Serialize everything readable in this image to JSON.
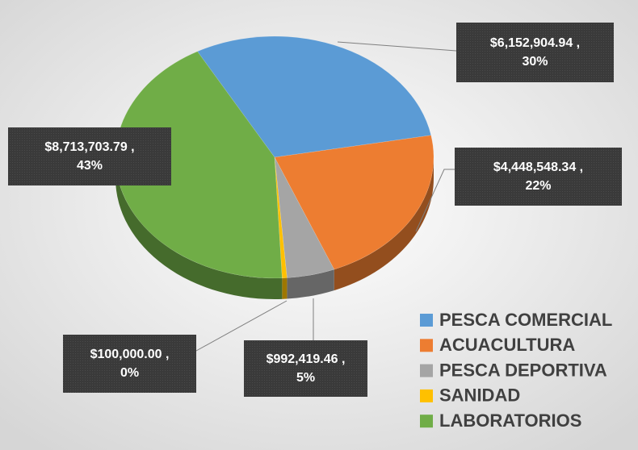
{
  "chart_data": {
    "type": "pie",
    "categories": [
      "PESCA COMERCIAL",
      "ACUACULTURA",
      "PESCA DEPORTIVA",
      "SANIDAD",
      "LABORATORIOS"
    ],
    "values": [
      6152904.94,
      4448548.34,
      992419.46,
      100000.0,
      8713703.79
    ],
    "value_labels": [
      "$6,152,904.94 ,",
      "$4,448,548.34 ,",
      "$992,419.46 ,",
      "$100,000.00 ,",
      "$8,713,703.79 ,"
    ],
    "percent_labels": [
      "30%",
      "22%",
      "5%",
      "0%",
      "43%"
    ],
    "colors": [
      "#5b9bd5",
      "#ed7d31",
      "#a5a5a5",
      "#ffc000",
      "#70ad47"
    ],
    "legend": "bottom-right"
  }
}
